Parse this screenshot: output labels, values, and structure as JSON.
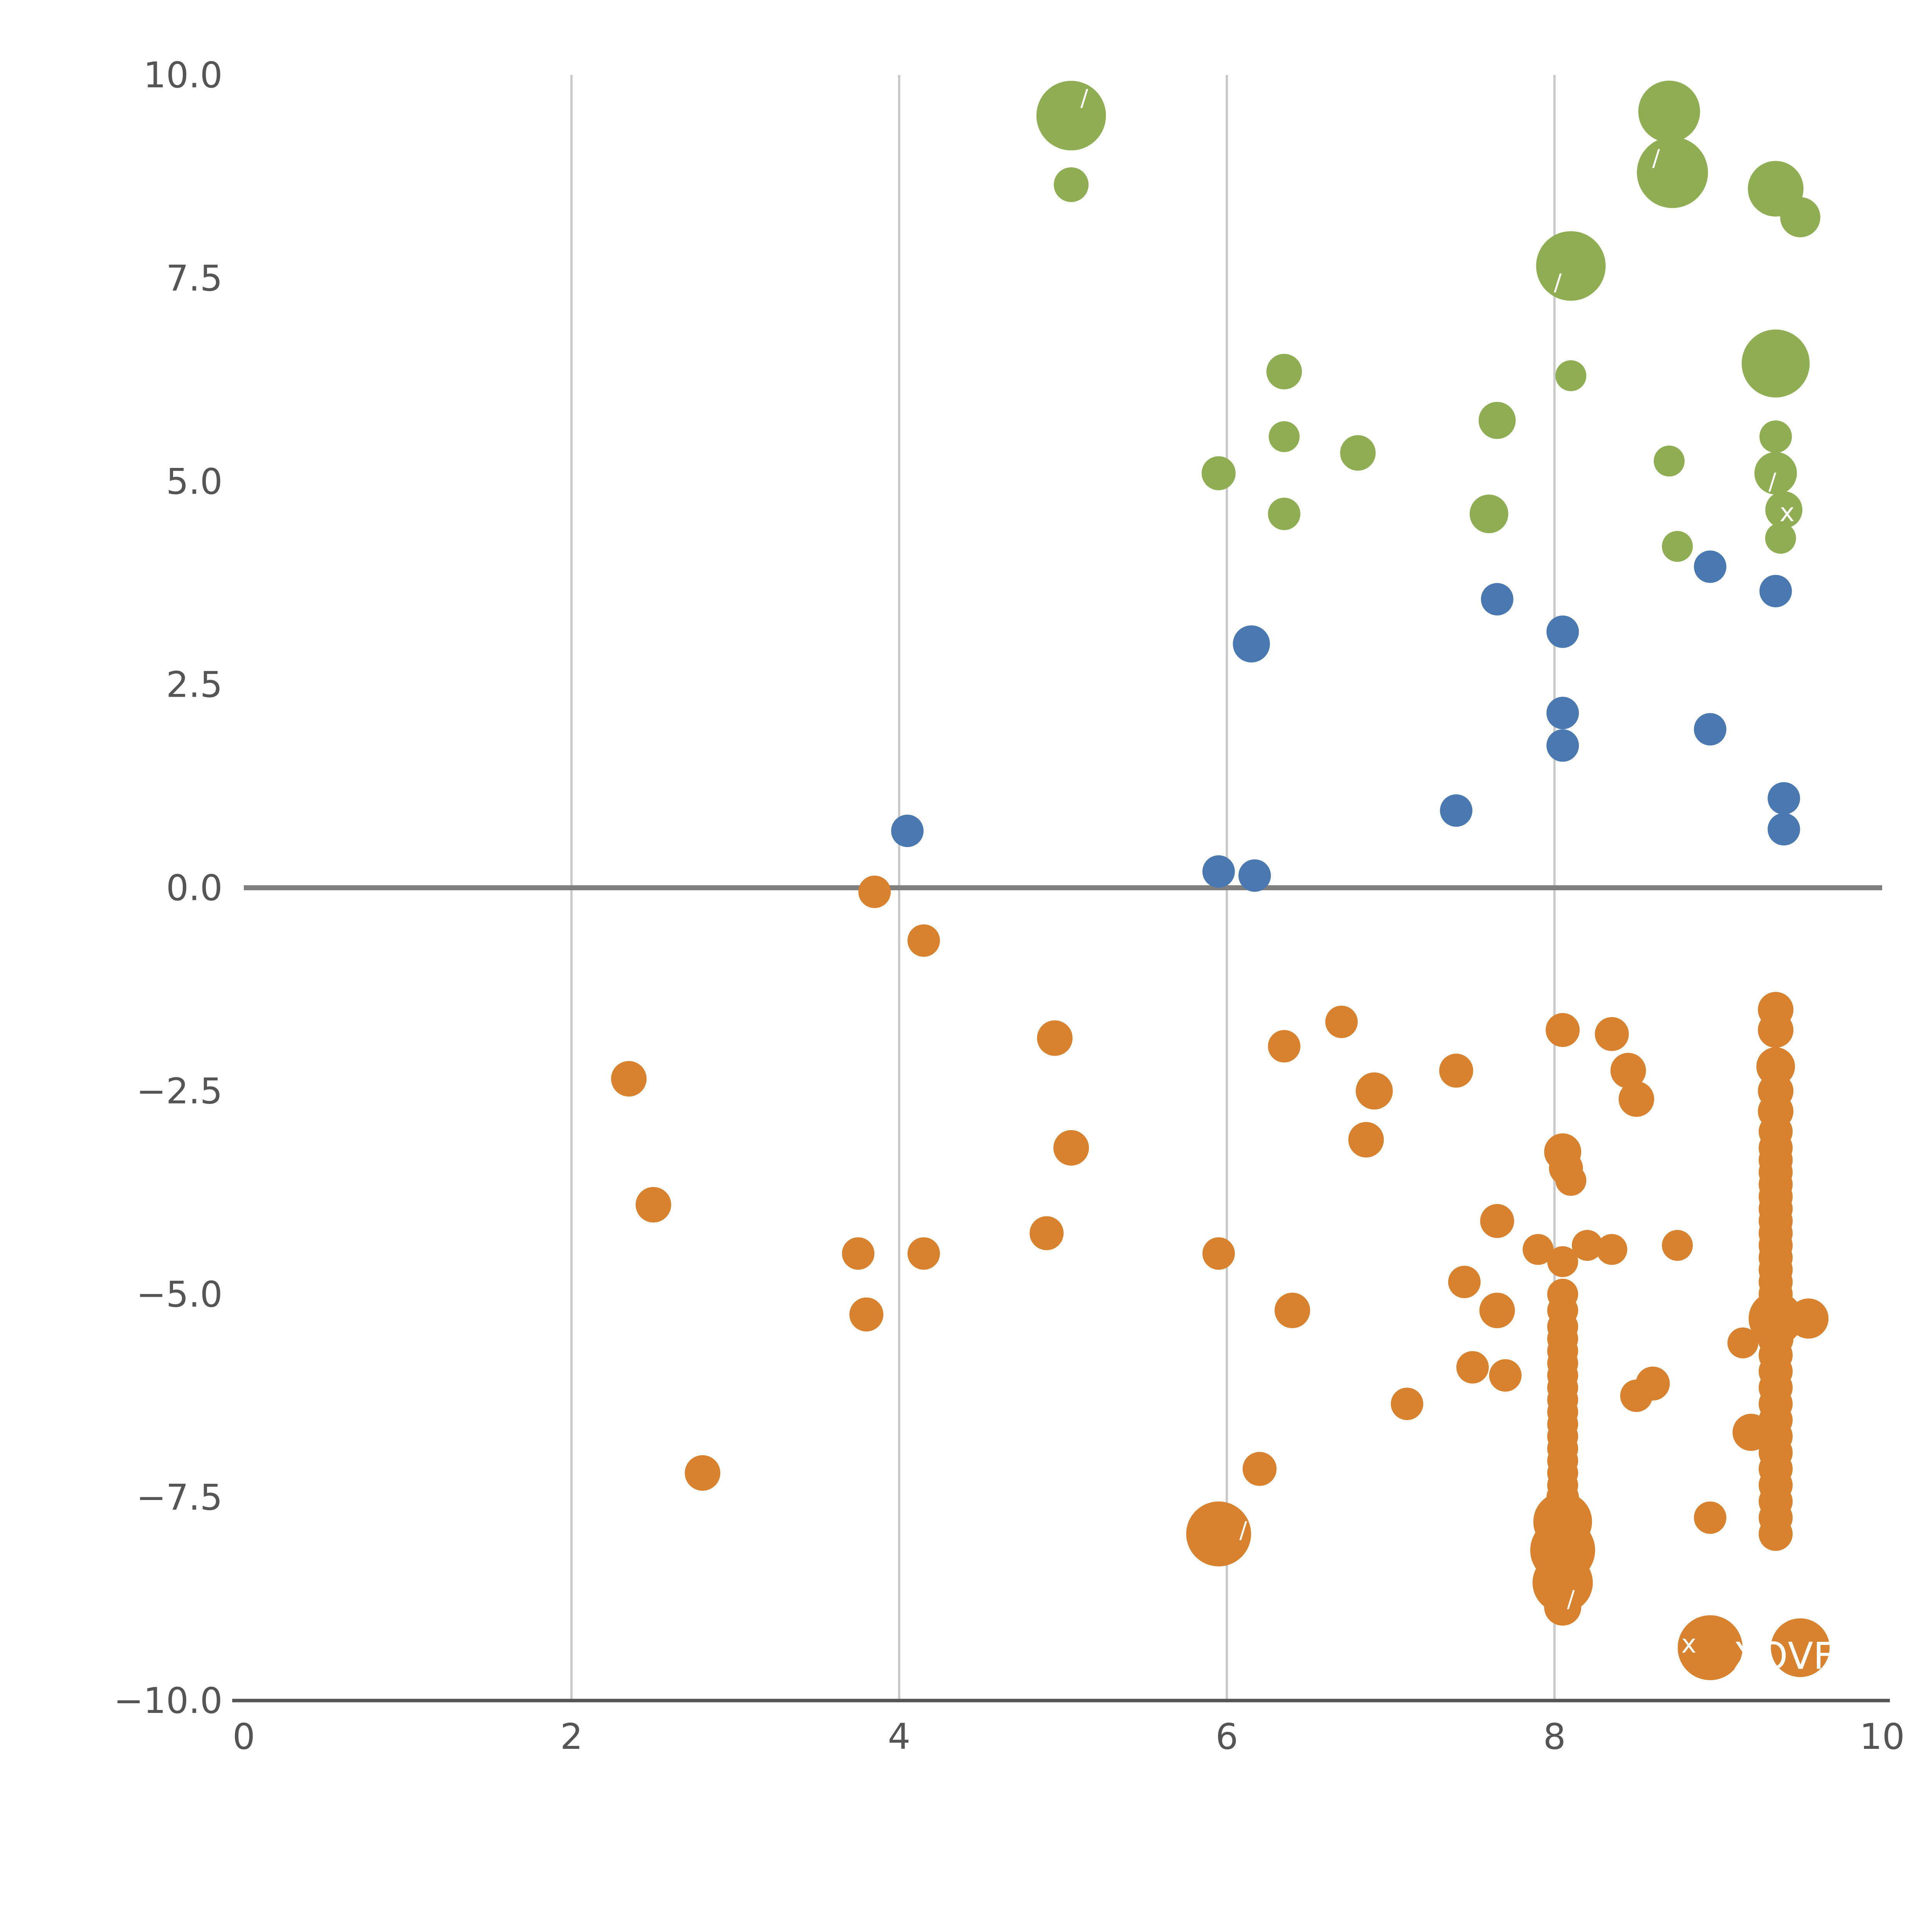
{
  "chart_data": {
    "type": "scatter",
    "title": "",
    "xlabel": "",
    "ylabel": "",
    "xlim": [
      0,
      10
    ],
    "ylim": [
      -10,
      10
    ],
    "grid": "vertical-only",
    "legend": "none",
    "x_ticks": [
      {
        "value": 0,
        "label": "0"
      },
      {
        "value": 2,
        "label": "2"
      },
      {
        "value": 4,
        "label": "4"
      },
      {
        "value": 6,
        "label": "6"
      },
      {
        "value": 8,
        "label": "8"
      },
      {
        "value": 10,
        "label": "10"
      }
    ],
    "y_ticks": [
      {
        "value": 10,
        "label": "10.0"
      },
      {
        "value": 7.5,
        "label": "7.5"
      },
      {
        "value": 5,
        "label": "5.0"
      },
      {
        "value": 2.5,
        "label": "2.5"
      },
      {
        "value": 0,
        "label": "0.0"
      },
      {
        "value": -2.5,
        "label": "−2.5"
      },
      {
        "value": -5,
        "label": "−5.0"
      },
      {
        "value": -7.5,
        "label": "−7.5"
      },
      {
        "value": -10,
        "label": "−10.0"
      }
    ],
    "vertical_gridlines_at": [
      2,
      4,
      6,
      8
    ],
    "zero_line_y": 0,
    "colors": {
      "green_series": "#8fae53",
      "blue_series": "#4a78b0",
      "orange_series": "#d8812e",
      "tick_text": "#555555",
      "gridline": "#c9c9c9",
      "zero_line": "#7f7f7f",
      "axis_line": "#555555",
      "annotation_text": "#ffffff",
      "background": "#ffffff"
    },
    "point_format": "[x, y, radius_px]",
    "series": [
      {
        "name": "green",
        "color_key": "green_series",
        "points": [
          [
            5.05,
            9.5,
            90
          ],
          [
            5.05,
            8.65,
            45
          ],
          [
            8.7,
            9.55,
            80
          ],
          [
            8.72,
            8.8,
            92
          ],
          [
            9.35,
            8.6,
            72
          ],
          [
            9.5,
            8.25,
            52
          ],
          [
            8.1,
            7.65,
            90
          ],
          [
            9.35,
            6.45,
            88
          ],
          [
            6.35,
            6.35,
            46
          ],
          [
            8.1,
            6.3,
            40
          ],
          [
            7.65,
            5.75,
            48
          ],
          [
            6.35,
            5.55,
            40
          ],
          [
            6.8,
            5.35,
            46
          ],
          [
            8.7,
            5.25,
            40
          ],
          [
            9.35,
            5.55,
            42
          ],
          [
            9.35,
            5.1,
            55
          ],
          [
            5.95,
            5.1,
            44
          ],
          [
            6.35,
            4.6,
            42
          ],
          [
            7.6,
            4.6,
            50
          ],
          [
            9.4,
            4.65,
            48
          ],
          [
            8.75,
            4.2,
            40
          ],
          [
            9.38,
            4.3,
            40
          ]
        ]
      },
      {
        "name": "blue",
        "color_key": "blue_series",
        "points": [
          [
            8.95,
            3.95,
            42
          ],
          [
            9.35,
            3.65,
            42
          ],
          [
            7.65,
            3.55,
            42
          ],
          [
            8.05,
            3.15,
            42
          ],
          [
            6.15,
            3.0,
            48
          ],
          [
            8.05,
            2.15,
            42
          ],
          [
            8.05,
            1.75,
            42
          ],
          [
            8.95,
            1.95,
            42
          ],
          [
            7.4,
            0.95,
            42
          ],
          [
            9.4,
            1.1,
            42
          ],
          [
            9.4,
            0.72,
            42
          ],
          [
            4.05,
            0.7,
            42
          ],
          [
            5.95,
            0.2,
            42
          ],
          [
            6.17,
            0.15,
            42
          ]
        ]
      },
      {
        "name": "orange",
        "color_key": "orange_series",
        "points": [
          [
            3.85,
            -0.05,
            42
          ],
          [
            4.15,
            -0.65,
            42
          ],
          [
            6.7,
            -1.65,
            42
          ],
          [
            4.95,
            -1.85,
            46
          ],
          [
            6.35,
            -1.95,
            42
          ],
          [
            8.35,
            -1.8,
            44
          ],
          [
            2.35,
            -2.35,
            46
          ],
          [
            7.4,
            -2.25,
            44
          ],
          [
            8.45,
            -2.25,
            46
          ],
          [
            8.5,
            -2.6,
            46
          ],
          [
            6.9,
            -2.5,
            48
          ],
          [
            6.85,
            -3.1,
            46
          ],
          [
            5.05,
            -3.2,
            46
          ],
          [
            2.5,
            -3.9,
            46
          ],
          [
            4.9,
            -4.25,
            44
          ],
          [
            3.75,
            -4.5,
            42
          ],
          [
            4.15,
            -4.5,
            42
          ],
          [
            5.95,
            -4.5,
            42
          ],
          [
            7.45,
            -4.85,
            42
          ],
          [
            7.65,
            -4.1,
            44
          ],
          [
            7.9,
            -4.45,
            40
          ],
          [
            8.2,
            -4.4,
            40
          ],
          [
            8.35,
            -4.45,
            40
          ],
          [
            8.75,
            -4.4,
            40
          ],
          [
            3.8,
            -5.25,
            44
          ],
          [
            6.4,
            -5.2,
            46
          ],
          [
            7.65,
            -5.2,
            46
          ],
          [
            7.5,
            -5.9,
            42
          ],
          [
            7.7,
            -6.0,
            42
          ],
          [
            7.1,
            -6.35,
            42
          ],
          [
            8.6,
            -6.1,
            44
          ],
          [
            8.5,
            -6.25,
            42
          ],
          [
            9.15,
            -5.6,
            40
          ],
          [
            9.2,
            -6.7,
            48
          ],
          [
            2.8,
            -7.2,
            46
          ],
          [
            6.2,
            -7.15,
            44
          ],
          [
            5.95,
            -7.95,
            84
          ],
          [
            8.95,
            -7.75,
            42
          ],
          [
            8.95,
            -9.35,
            84
          ],
          [
            9.5,
            -9.35,
            76
          ],
          [
            9.55,
            -5.3,
            52
          ],
          [
            8.05,
            -1.75,
            44
          ],
          [
            8.05,
            -3.25,
            48
          ],
          [
            8.07,
            -3.45,
            44
          ],
          [
            8.1,
            -3.6,
            40
          ],
          [
            8.05,
            -4.6,
            40
          ],
          [
            8.05,
            -5.0,
            40
          ],
          [
            8.05,
            -5.2,
            40
          ],
          [
            8.05,
            -5.4,
            40
          ],
          [
            8.05,
            -5.55,
            40
          ],
          [
            8.05,
            -5.7,
            40
          ],
          [
            8.05,
            -5.85,
            40
          ],
          [
            8.05,
            -6.0,
            40
          ],
          [
            8.05,
            -6.15,
            40
          ],
          [
            8.05,
            -6.3,
            40
          ],
          [
            8.05,
            -6.45,
            40
          ],
          [
            8.05,
            -6.6,
            40
          ],
          [
            8.05,
            -6.75,
            40
          ],
          [
            8.05,
            -6.9,
            40
          ],
          [
            8.05,
            -7.05,
            40
          ],
          [
            8.05,
            -7.2,
            40
          ],
          [
            8.05,
            -7.35,
            40
          ],
          [
            8.05,
            -7.5,
            42
          ],
          [
            8.05,
            -7.8,
            76
          ],
          [
            8.05,
            -8.15,
            84
          ],
          [
            8.05,
            -8.55,
            78
          ],
          [
            8.05,
            -8.85,
            48
          ],
          [
            9.35,
            -1.5,
            46
          ],
          [
            9.35,
            -1.75,
            46
          ],
          [
            9.35,
            -2.2,
            50
          ],
          [
            9.35,
            -2.5,
            46
          ],
          [
            9.35,
            -2.75,
            46
          ],
          [
            9.35,
            -3.0,
            44
          ],
          [
            9.35,
            -3.2,
            44
          ],
          [
            9.35,
            -3.35,
            44
          ],
          [
            9.35,
            -3.5,
            44
          ],
          [
            9.35,
            -3.65,
            44
          ],
          [
            9.35,
            -3.8,
            44
          ],
          [
            9.35,
            -3.95,
            44
          ],
          [
            9.35,
            -4.1,
            44
          ],
          [
            9.35,
            -4.25,
            44
          ],
          [
            9.35,
            -4.4,
            44
          ],
          [
            9.35,
            -4.55,
            44
          ],
          [
            9.35,
            -4.7,
            44
          ],
          [
            9.35,
            -4.85,
            44
          ],
          [
            9.35,
            -5.0,
            44
          ],
          [
            9.35,
            -5.3,
            70
          ],
          [
            9.35,
            -5.55,
            46
          ],
          [
            9.35,
            -5.75,
            44
          ],
          [
            9.35,
            -5.95,
            44
          ],
          [
            9.35,
            -6.15,
            44
          ],
          [
            9.35,
            -6.35,
            44
          ],
          [
            9.35,
            -6.55,
            44
          ],
          [
            9.35,
            -6.75,
            44
          ],
          [
            9.35,
            -6.95,
            44
          ],
          [
            9.35,
            -7.15,
            44
          ],
          [
            9.35,
            -7.35,
            44
          ],
          [
            9.35,
            -7.55,
            44
          ],
          [
            9.35,
            -7.75,
            44
          ],
          [
            9.35,
            -7.95,
            44
          ]
        ]
      }
    ],
    "annotations": [
      {
        "text": "/",
        "x": 5.13,
        "y": 9.72,
        "size": 60
      },
      {
        "text": "/",
        "x": 8.62,
        "y": 8.98,
        "size": 60
      },
      {
        "text": "/",
        "x": 8.02,
        "y": 7.45,
        "size": 60
      },
      {
        "text": "/",
        "x": 9.33,
        "y": 5.0,
        "size": 60
      },
      {
        "text": "x",
        "x": 9.42,
        "y": 4.62,
        "size": 66
      },
      {
        "text": "/",
        "x": 6.1,
        "y": -7.9,
        "size": 60
      },
      {
        "text": "/",
        "x": 8.1,
        "y": -8.75,
        "size": 60
      },
      {
        "text": "x",
        "x": 8.82,
        "y": -9.3,
        "size": 66
      },
      {
        "text": "XQVF",
        "x": 9.4,
        "y": -9.45,
        "size": 96
      }
    ]
  }
}
